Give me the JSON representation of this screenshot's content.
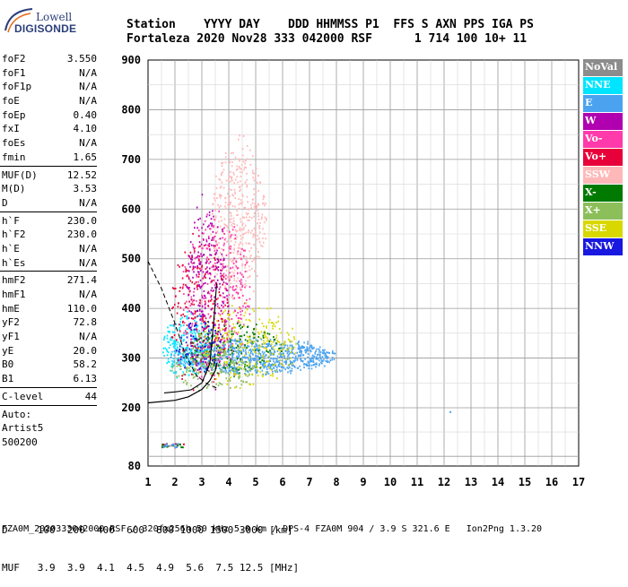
{
  "logo": {
    "line1": "Lowell",
    "line2": "DIGISONDE"
  },
  "header": {
    "line1": "Station    YYYY DAY    DDD HHMMSS P1  FFS S AXN PPS IGA PS",
    "line2": "Fortaleza 2020 Nov28 333 042000 RSF      1 714 100 10+ 11"
  },
  "params": {
    "group1": [
      {
        "label": "foF2",
        "value": "3.550"
      },
      {
        "label": "foF1",
        "value": "N/A"
      },
      {
        "label": "foF1p",
        "value": "N/A"
      },
      {
        "label": "foE",
        "value": "N/A"
      },
      {
        "label": "foEp",
        "value": "0.40"
      },
      {
        "label": "fxI",
        "value": "4.10"
      },
      {
        "label": "foEs",
        "value": "N/A"
      },
      {
        "label": "fmin",
        "value": "1.65"
      }
    ],
    "group2": [
      {
        "label": "MUF(D)",
        "value": "12.52"
      },
      {
        "label": "M(D)",
        "value": "3.53"
      },
      {
        "label": "D",
        "value": "N/A"
      }
    ],
    "group3": [
      {
        "label": "h`F",
        "value": "230.0"
      },
      {
        "label": "h`F2",
        "value": "230.0"
      },
      {
        "label": "h`E",
        "value": "N/A"
      },
      {
        "label": "h`Es",
        "value": "N/A"
      }
    ],
    "group4": [
      {
        "label": "hmF2",
        "value": "271.4"
      },
      {
        "label": "hmF1",
        "value": "N/A"
      },
      {
        "label": "hmE",
        "value": "110.0"
      },
      {
        "label": "yF2",
        "value": "72.8"
      },
      {
        "label": "yF1",
        "value": "N/A"
      },
      {
        "label": "yE",
        "value": "20.0"
      },
      {
        "label": "B0",
        "value": "58.2"
      },
      {
        "label": "B1",
        "value": "6.13"
      }
    ],
    "group5": [
      {
        "label": "C-level",
        "value": "44"
      }
    ],
    "auto": [
      "Auto:",
      "Artist5",
      "500200"
    ]
  },
  "legend": [
    {
      "label": "NoVal",
      "color": "#8c8c8c"
    },
    {
      "label": "NNE",
      "color": "#00e5ff"
    },
    {
      "label": "E",
      "color": "#4ba3f0"
    },
    {
      "label": "W",
      "color": "#b000b0"
    },
    {
      "label": "Vo-",
      "color": "#ff3aaa"
    },
    {
      "label": "Vo+",
      "color": "#e8003a"
    },
    {
      "label": "SSW",
      "color": "#ffb8b8"
    },
    {
      "label": "X-",
      "color": "#007a00"
    },
    {
      "label": "X+",
      "color": "#8cbf5a"
    },
    {
      "label": "SSE",
      "color": "#d8d800"
    },
    {
      "label": "NNW",
      "color": "#1818e0"
    }
  ],
  "footer": {
    "line1": "D     100  200  400  600  800 1000 1500 3000 [km]",
    "line2": "MUF   3.9  3.9  4.1  4.5  4.9  5.6  7.5 12.5 [MHz]",
    "line3": "FZA0M_2020333042000.RSF / 320fx256h 50 kHz 5.0 km / DPS-4 FZA0M 904 / 3.9 S 321.6 E   Ion2Png 1.3.20"
  },
  "chart_data": {
    "type": "scatter",
    "xlabel": "",
    "ylabel": "",
    "xlim": [
      1,
      17
    ],
    "ylim": [
      80,
      900
    ],
    "xticks": [
      1,
      2,
      3,
      4,
      5,
      6,
      7,
      8,
      9,
      10,
      11,
      12,
      13,
      14,
      15,
      16,
      17
    ],
    "yticks": [
      80,
      200,
      300,
      400,
      500,
      600,
      700,
      800,
      900
    ],
    "grid": true,
    "regions": [
      {
        "name": "E",
        "x": [
          1.8,
          8.0
        ],
        "y": [
          265,
          345
        ]
      },
      {
        "name": "NNE",
        "x": [
          1.5,
          3.4
        ],
        "y": [
          250,
          400
        ]
      },
      {
        "name": "SSW",
        "x": [
          3.3,
          5.4
        ],
        "y": [
          400,
          760
        ]
      },
      {
        "name": "Vo-",
        "x": [
          2.2,
          4.8
        ],
        "y": [
          220,
          620
        ]
      },
      {
        "name": "Vo+",
        "x": [
          1.8,
          4.0
        ],
        "y": [
          220,
          560
        ]
      },
      {
        "name": "W",
        "x": [
          2.4,
          4.0
        ],
        "y": [
          220,
          650
        ]
      },
      {
        "name": "X-",
        "x": [
          2.5,
          6.0
        ],
        "y": [
          260,
          380
        ]
      },
      {
        "name": "X+",
        "x": [
          1.8,
          5.0
        ],
        "y": [
          230,
          330
        ]
      },
      {
        "name": "SSE",
        "x": [
          2.8,
          6.5
        ],
        "y": [
          230,
          420
        ]
      },
      {
        "name": "NNW",
        "x": [
          2.0,
          3.8
        ],
        "y": [
          260,
          400
        ]
      }
    ],
    "low_echoes": {
      "x": [
        1.5,
        2.3
      ],
      "y": [
        120,
        128
      ]
    },
    "stray_point": {
      "x": 12.2,
      "y": 193
    },
    "profile_curve": [
      [
        1.0,
        210
      ],
      [
        2.0,
        215
      ],
      [
        2.5,
        222
      ],
      [
        3.0,
        237
      ],
      [
        3.3,
        255
      ],
      [
        3.5,
        275
      ],
      [
        3.55,
        290
      ]
    ],
    "dashed_curve": [
      [
        1.0,
        495
      ],
      [
        1.5,
        440
      ],
      [
        2.0,
        370
      ],
      [
        2.4,
        305
      ],
      [
        2.8,
        265
      ],
      [
        3.2,
        248
      ],
      [
        3.55,
        240
      ]
    ],
    "trace_curve": [
      [
        1.6,
        230
      ],
      [
        2.0,
        232
      ],
      [
        2.6,
        236
      ],
      [
        3.0,
        250
      ],
      [
        3.3,
        290
      ],
      [
        3.45,
        380
      ],
      [
        3.55,
        450
      ]
    ]
  }
}
